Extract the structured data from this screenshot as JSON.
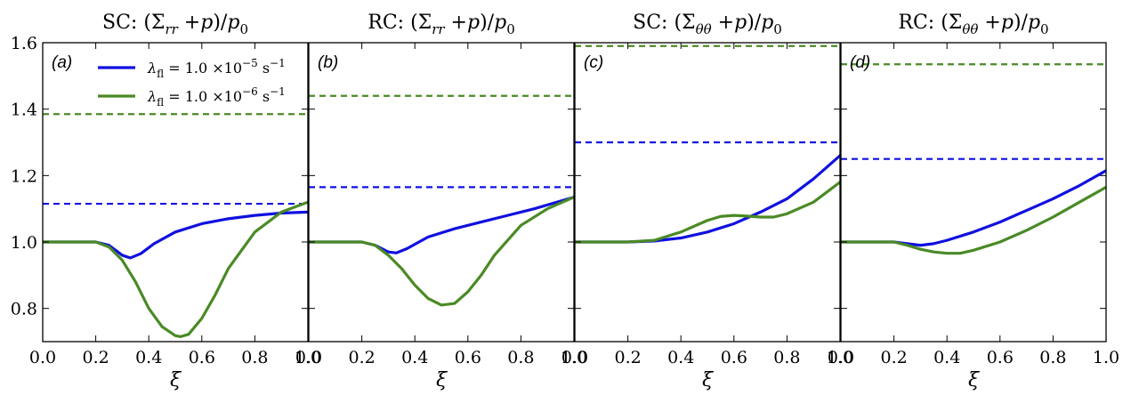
{
  "chart_data": {
    "type": "line",
    "xlabel": "ξ",
    "xlim": [
      0.0,
      1.0
    ],
    "ylim": [
      0.7,
      1.6
    ],
    "xticks": [
      "0.0",
      "0.2",
      "0.4",
      "0.6",
      "0.8",
      "1.0"
    ],
    "yticks": [
      "0.8",
      "1.0",
      "1.2",
      "1.4",
      "1.6"
    ],
    "colors": {
      "blue": "#1010e0",
      "green": "#4a8a25"
    },
    "legend": {
      "placement": "upper-left of panel (a)",
      "entries": [
        {
          "label": "λ_fl = 1.0 ×10⁻⁵ s⁻¹",
          "color": "blue"
        },
        {
          "label": "λ_fl = 1.0 ×10⁻⁶ s⁻¹",
          "color": "green"
        }
      ]
    },
    "panels": [
      {
        "title": "SC: (Σ_rr + p)/p₀",
        "label": "(a)",
        "dashed": {
          "blue": 1.115,
          "green": 1.385
        },
        "series": [
          {
            "color": "blue",
            "x": [
              0,
              0.2,
              0.25,
              0.3,
              0.33,
              0.37,
              0.42,
              0.5,
              0.6,
              0.7,
              0.8,
              0.9,
              1.0
            ],
            "y": [
              1.0,
              1.0,
              0.99,
              0.96,
              0.952,
              0.965,
              0.995,
              1.03,
              1.055,
              1.07,
              1.08,
              1.087,
              1.09
            ]
          },
          {
            "color": "green",
            "x": [
              0,
              0.2,
              0.25,
              0.3,
              0.35,
              0.4,
              0.45,
              0.5,
              0.52,
              0.55,
              0.6,
              0.65,
              0.7,
              0.8,
              0.9,
              1.0
            ],
            "y": [
              1.0,
              1.0,
              0.985,
              0.945,
              0.88,
              0.8,
              0.745,
              0.718,
              0.715,
              0.722,
              0.77,
              0.84,
              0.92,
              1.03,
              1.09,
              1.12
            ]
          }
        ]
      },
      {
        "title": "RC: (Σ_rr + p)/p₀",
        "label": "(b)",
        "dashed": {
          "blue": 1.165,
          "green": 1.44
        },
        "series": [
          {
            "color": "blue",
            "x": [
              0,
              0.2,
              0.25,
              0.3,
              0.33,
              0.37,
              0.45,
              0.55,
              0.65,
              0.75,
              0.85,
              1.0
            ],
            "y": [
              1.0,
              1.0,
              0.99,
              0.97,
              0.967,
              0.98,
              1.015,
              1.04,
              1.06,
              1.08,
              1.1,
              1.135
            ]
          },
          {
            "color": "green",
            "x": [
              0,
              0.2,
              0.25,
              0.3,
              0.35,
              0.4,
              0.45,
              0.5,
              0.55,
              0.6,
              0.65,
              0.7,
              0.8,
              0.9,
              1.0
            ],
            "y": [
              1.0,
              1.0,
              0.99,
              0.96,
              0.92,
              0.87,
              0.83,
              0.81,
              0.815,
              0.85,
              0.9,
              0.96,
              1.05,
              1.1,
              1.135
            ]
          }
        ]
      },
      {
        "title": "SC: (Σ_θθ + p)/p₀",
        "label": "(c)",
        "dashed": {
          "blue": 1.3,
          "green": 1.59
        },
        "series": [
          {
            "color": "blue",
            "x": [
              0,
              0.2,
              0.3,
              0.4,
              0.5,
              0.6,
              0.7,
              0.8,
              0.9,
              1.0
            ],
            "y": [
              1.0,
              1.0,
              1.003,
              1.012,
              1.03,
              1.055,
              1.09,
              1.13,
              1.19,
              1.26
            ]
          },
          {
            "color": "green",
            "x": [
              0,
              0.2,
              0.3,
              0.4,
              0.5,
              0.55,
              0.6,
              0.65,
              0.7,
              0.75,
              0.8,
              0.9,
              1.0
            ],
            "y": [
              1.0,
              1.0,
              1.005,
              1.03,
              1.065,
              1.077,
              1.08,
              1.078,
              1.075,
              1.075,
              1.085,
              1.12,
              1.18
            ]
          }
        ]
      },
      {
        "title": "RC: (Σ_θθ + p)/p₀",
        "label": "(d)",
        "dashed": {
          "blue": 1.25,
          "green": 1.535
        },
        "series": [
          {
            "color": "blue",
            "x": [
              0,
              0.2,
              0.25,
              0.3,
              0.35,
              0.4,
              0.5,
              0.6,
              0.7,
              0.8,
              0.9,
              1.0
            ],
            "y": [
              1.0,
              1.0,
              0.995,
              0.99,
              0.995,
              1.005,
              1.03,
              1.06,
              1.095,
              1.13,
              1.17,
              1.215
            ]
          },
          {
            "color": "green",
            "x": [
              0,
              0.2,
              0.25,
              0.3,
              0.35,
              0.4,
              0.45,
              0.5,
              0.6,
              0.7,
              0.8,
              0.9,
              1.0
            ],
            "y": [
              1.0,
              1.0,
              0.99,
              0.978,
              0.97,
              0.966,
              0.966,
              0.975,
              1.0,
              1.035,
              1.075,
              1.12,
              1.165
            ]
          }
        ]
      }
    ]
  }
}
